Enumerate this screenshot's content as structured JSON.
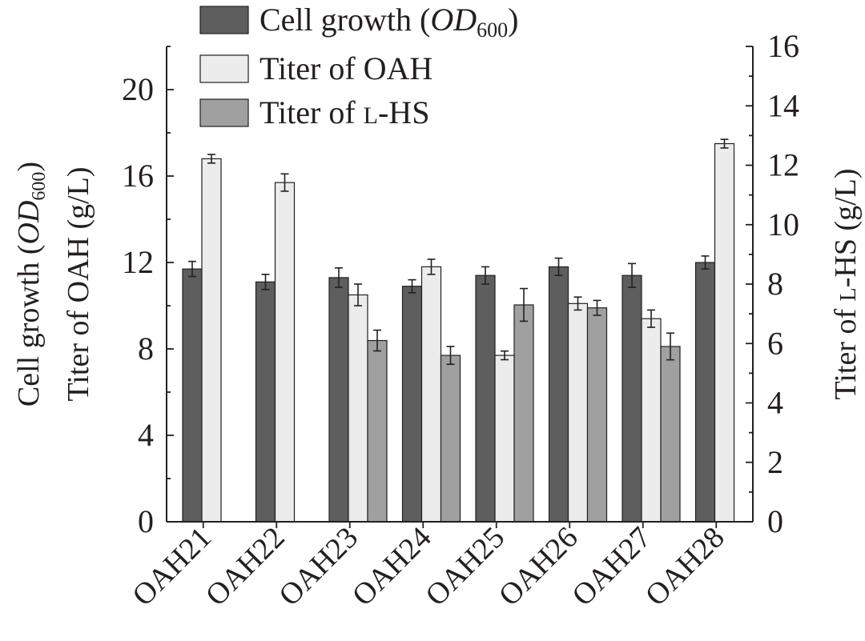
{
  "chart_data": {
    "type": "bar",
    "categories": [
      "OAH21",
      "OAH22",
      "OAH23",
      "OAH24",
      "OAH25",
      "OAH26",
      "OAH27",
      "OAH28"
    ],
    "left_axis": {
      "title_line1_prefix": "Cell growth (",
      "title_line1_italic": "OD",
      "title_line1_sub": "600",
      "title_line1_suffix": ")",
      "title_line2": "Titer of OAH (g/L)",
      "ylim": [
        0,
        22
      ],
      "ticks": [
        0,
        4,
        8,
        12,
        16,
        20
      ],
      "tick_labels": [
        "0",
        "4",
        "8",
        "12",
        "16",
        "20"
      ]
    },
    "right_axis": {
      "title_prefix": "Titer of ",
      "title_smallcaps": "l",
      "title_suffix": "-HS (g/L)",
      "ylim": [
        0,
        16
      ],
      "ticks": [
        0,
        2,
        4,
        6,
        8,
        10,
        12,
        14,
        16
      ],
      "tick_labels": [
        "0",
        "2",
        "4",
        "6",
        "8",
        "10",
        "12",
        "14",
        "16"
      ]
    },
    "series": [
      {
        "name": "Cell growth (OD600)",
        "axis": "left",
        "color": "#5e5e5e",
        "values": [
          11.7,
          11.1,
          11.3,
          10.9,
          11.4,
          11.8,
          11.4,
          12.0
        ],
        "errors": [
          0.35,
          0.35,
          0.45,
          0.3,
          0.4,
          0.4,
          0.55,
          0.3
        ]
      },
      {
        "name": "Titer of OAH",
        "axis": "left",
        "color": "#ececec",
        "values": [
          16.8,
          15.7,
          10.5,
          11.8,
          7.7,
          10.1,
          9.4,
          17.5
        ],
        "errors": [
          0.2,
          0.4,
          0.5,
          0.35,
          0.2,
          0.3,
          0.4,
          0.2
        ]
      },
      {
        "name": "Titer of L-HS",
        "axis": "right",
        "color": "#a0a0a0",
        "values": [
          null,
          null,
          6.1,
          5.6,
          7.3,
          7.2,
          5.9,
          null
        ],
        "errors": [
          null,
          null,
          0.35,
          0.3,
          0.55,
          0.25,
          0.45,
          null
        ]
      }
    ],
    "legend": {
      "position": "top-center",
      "items": [
        {
          "prefix": "Cell growth (",
          "italic": "OD",
          "sub": "600",
          "suffix": ")",
          "color": "#5e5e5e"
        },
        {
          "prefix": "Titer of OAH",
          "italic": "",
          "sub": "",
          "suffix": "",
          "color": "#ececec"
        },
        {
          "prefix": "Titer of ",
          "smallcaps": "l",
          "suffix": "-HS",
          "color": "#a0a0a0"
        }
      ]
    },
    "colors": {
      "axis": "#231f20",
      "bar_stroke": "#231f20"
    }
  }
}
